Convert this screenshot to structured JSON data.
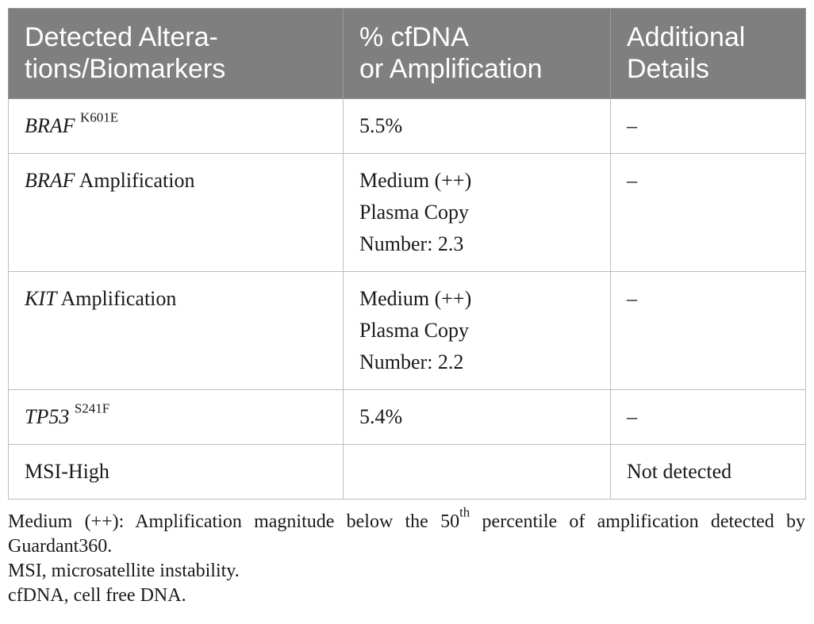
{
  "table": {
    "headers": [
      [
        "Detected Altera-",
        "tions/Biomarkers"
      ],
      [
        "% cfDNA",
        "or Amplification"
      ],
      [
        "Additional",
        "Details"
      ]
    ],
    "rows": [
      {
        "gene": "BRAF",
        "rest": "",
        "sup": "K601E",
        "value": [
          "5.5%"
        ],
        "details": "–"
      },
      {
        "gene": "BRAF",
        "rest": " Amplification",
        "sup": "",
        "value": [
          "Medium (++)",
          "Plasma Copy",
          "Number: 2.3"
        ],
        "details": "–"
      },
      {
        "gene": "KIT",
        "rest": " Amplification",
        "sup": "",
        "value": [
          "Medium (++)",
          "Plasma Copy",
          "Number: 2.2"
        ],
        "details": "–"
      },
      {
        "gene": "TP53",
        "rest": "",
        "sup": "S241F",
        "value": [
          "5.4%"
        ],
        "details": "–"
      },
      {
        "gene": "",
        "rest": "MSI-High",
        "sup": "",
        "value": [
          ""
        ],
        "details": "Not detected"
      }
    ]
  },
  "footnotes": {
    "medium_pre": "Medium (++): Amplification magnitude below the 50",
    "medium_sup": "th",
    "medium_post": " percentile of amplification detected by Guardant360.",
    "msi": "MSI, microsatellite instability.",
    "cfdna": "cfDNA, cell free DNA."
  }
}
